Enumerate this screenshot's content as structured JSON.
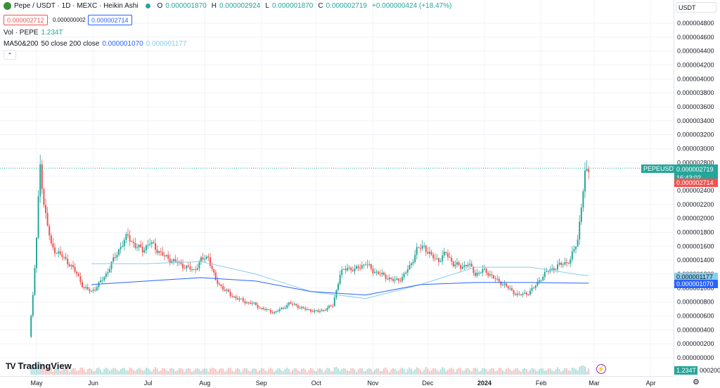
{
  "header": {
    "title": "Pepe / USDT · 1D · MEXC · Heikin Ashi",
    "ohlc": {
      "open_label": "O",
      "open": "0.000001870",
      "high_label": "H",
      "high": "0.000002924",
      "low_label": "L",
      "low": "0.000001870",
      "close_label": "C",
      "close": "0.000002719",
      "change": "+0.000000424 (+18.47%)"
    },
    "sell_price": "0.000002712",
    "spread": "0.000000002",
    "buy_price": "0.000002714"
  },
  "indicators": {
    "volume_label": "Vol · PEPE",
    "volume_value": "1.234T",
    "ma_label": "MA50&200",
    "ma_params": "50 close 200 close",
    "ma50_value": "0.000001070",
    "ma200_value": "0.000001177"
  },
  "currency_select": "USDT",
  "logo_text": "TradingView",
  "tags": {
    "symbol": "PEPEUSDT",
    "last_price": "0.000002719",
    "countdown": "16:43:02",
    "ask_price": "0.000002714",
    "ma200": "0.000001177",
    "ma50": "0.000001070",
    "volume": "1.234T",
    "axis_bottom_partial": "000200"
  },
  "colors": {
    "up": "#26a69a",
    "down": "#ef5350",
    "ma50": "#2962ff",
    "ma200": "#87ceeb",
    "grid": "#f0f3fa"
  },
  "chart_data": {
    "type": "candlestick",
    "title": "Pepe / USDT · 1D · MEXC · Heikin Ashi",
    "y_ticks": [
      "0.000004800",
      "0.000004600",
      "0.000004400",
      "0.000004200",
      "0.000004000",
      "0.000003800",
      "0.000003600",
      "0.000003400",
      "0.000003200",
      "0.000003000",
      "0.000002800",
      "0.000002600",
      "0.000002400",
      "0.000002200",
      "0.000002000",
      "0.000001800",
      "0.000001600",
      "0.000001400",
      "0.000001200",
      "0.000001000",
      "0.000000800",
      "0.000000600",
      "0.000000400",
      "0.000000200",
      "0.000000000"
    ],
    "y_tick_values": [
      4.8,
      4.6,
      4.4,
      4.2,
      4.0,
      3.8,
      3.6,
      3.4,
      3.2,
      3.0,
      2.8,
      2.6,
      2.4,
      2.2,
      2.0,
      1.8,
      1.6,
      1.4,
      1.2,
      1.0,
      0.8,
      0.6,
      0.4,
      0.2,
      0.0
    ],
    "y_unit_scale": "1e-6",
    "ylim": [
      0.0,
      4.8
    ],
    "x_ticks": [
      "May",
      "Jun",
      "Jul",
      "Aug",
      "Sep",
      "Oct",
      "Nov",
      "Dec",
      "2024",
      "Feb",
      "Mar",
      "Apr"
    ],
    "x_tick_days": [
      0,
      31,
      61,
      92,
      123,
      153,
      184,
      214,
      245,
      276,
      305,
      336
    ],
    "x_start": "2023-05-01",
    "xlim_days": [
      -30,
      348
    ],
    "close_series_days": [
      -4,
      -2,
      0,
      2,
      4,
      6,
      8,
      10,
      14,
      18,
      22,
      26,
      30,
      34,
      38,
      42,
      46,
      50,
      54,
      58,
      62,
      66,
      70,
      74,
      78,
      82,
      86,
      90,
      94,
      98,
      102,
      106,
      110,
      114,
      118,
      122,
      126,
      130,
      134,
      138,
      142,
      146,
      150,
      154,
      158,
      162,
      166,
      170,
      174,
      176,
      180,
      184,
      188,
      192,
      196,
      200,
      204,
      208,
      212,
      216,
      220,
      224,
      228,
      232,
      236,
      240,
      244,
      248,
      252,
      256,
      260,
      264,
      268,
      272,
      276,
      280,
      284,
      288,
      292,
      296,
      298,
      300,
      302
    ],
    "close_series": [
      0.3,
      0.9,
      1.7,
      2.8,
      2.2,
      1.9,
      1.6,
      1.55,
      1.45,
      1.35,
      1.2,
      1.0,
      0.95,
      1.05,
      1.2,
      1.4,
      1.6,
      1.75,
      1.6,
      1.55,
      1.65,
      1.55,
      1.45,
      1.4,
      1.35,
      1.3,
      1.25,
      1.4,
      1.45,
      1.1,
      1.0,
      0.9,
      0.85,
      0.8,
      0.78,
      0.72,
      0.68,
      0.65,
      0.7,
      0.78,
      0.75,
      0.7,
      0.68,
      0.66,
      0.7,
      0.75,
      1.2,
      1.3,
      1.25,
      1.3,
      1.35,
      1.25,
      1.2,
      1.15,
      1.1,
      1.15,
      1.3,
      1.55,
      1.6,
      1.45,
      1.4,
      1.5,
      1.35,
      1.3,
      1.35,
      1.2,
      1.25,
      1.2,
      1.1,
      1.05,
      0.95,
      0.9,
      0.92,
      1.0,
      1.15,
      1.25,
      1.3,
      1.35,
      1.4,
      1.7,
      2.2,
      2.6,
      2.72
    ],
    "ma50_days": [
      30,
      60,
      90,
      120,
      150,
      180,
      210,
      240,
      270,
      300,
      302
    ],
    "ma50": [
      1.05,
      1.1,
      1.15,
      1.1,
      0.95,
      0.9,
      1.05,
      1.08,
      1.08,
      1.07,
      1.07
    ],
    "ma200_days": [
      30,
      60,
      90,
      120,
      150,
      180,
      210,
      240,
      270,
      300,
      302
    ],
    "ma200": [
      1.35,
      1.35,
      1.38,
      1.2,
      0.95,
      0.85,
      1.05,
      1.3,
      1.3,
      1.18,
      1.18
    ],
    "series": [
      {
        "name": "MA50",
        "color": "#2962ff"
      },
      {
        "name": "MA200",
        "color": "#87ceeb"
      }
    ],
    "grid": true
  }
}
